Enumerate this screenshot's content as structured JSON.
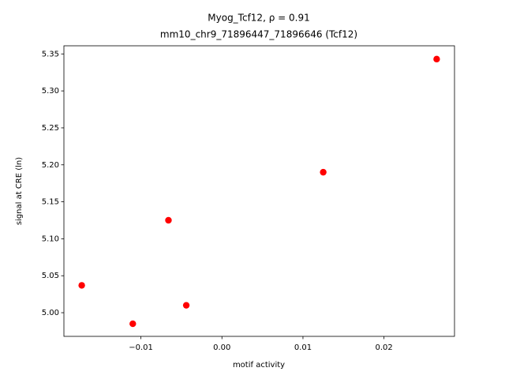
{
  "chart_data": {
    "type": "scatter",
    "title": "Myog_Tcf12, ρ = 0.91",
    "subtitle": "mm10_chr9_71896447_71896646 (Tcf12)",
    "xlabel": "motif activity",
    "ylabel": "signal at CRE (ln)",
    "color": "#ff0000",
    "x": [
      -0.0173,
      -0.011,
      -0.0066,
      -0.0044,
      0.0125,
      0.0265
    ],
    "values": [
      5.037,
      4.985,
      5.125,
      5.01,
      5.19,
      5.343
    ],
    "xlim": [
      -0.0195,
      0.0287
    ],
    "ylim": [
      4.968,
      5.361
    ],
    "xticks": [
      {
        "value": -0.01,
        "label": "−0.01"
      },
      {
        "value": 0,
        "label": "0.00"
      },
      0.01,
      0.02
    ],
    "yticks": [
      {
        "value": 5.0,
        "label": "5.00"
      },
      5.05,
      {
        "value": 5.1,
        "label": "5.10"
      },
      5.15,
      {
        "value": 5.2,
        "label": "5.20"
      },
      5.25,
      {
        "value": 5.3,
        "label": "5.30"
      },
      5.35
    ]
  }
}
